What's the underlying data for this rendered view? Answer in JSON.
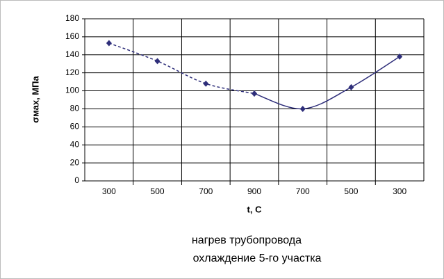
{
  "chart_data": {
    "type": "line",
    "categories": [
      "300",
      "500",
      "700",
      "900",
      "700",
      "500",
      "300"
    ],
    "series": [
      {
        "name": "нагрев трубопровода",
        "color": "#2e2e7a",
        "dashed": true,
        "values": [
          153,
          133,
          108,
          97,
          null,
          null,
          null
        ]
      },
      {
        "name": "охлаждение 5-го участка",
        "color": "#2e2e7a",
        "dashed": false,
        "values": [
          null,
          null,
          null,
          97,
          80,
          104,
          138
        ]
      }
    ],
    "x_label": "t, C",
    "y_label": "σмах, МПа",
    "ylim": [
      0,
      180
    ],
    "yticks": [
      0,
      20,
      40,
      60,
      80,
      100,
      120,
      140,
      160,
      180
    ],
    "grid": true
  }
}
